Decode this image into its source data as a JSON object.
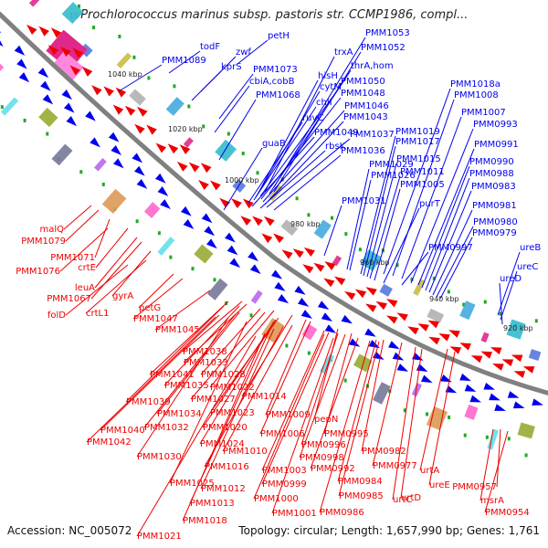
{
  "header": {
    "title": "Prochlorococcus marinus subsp. pastoris str. CCMP1986, compl...",
    "title_prefix": "10"
  },
  "footer": {
    "accession": "Accession: NC_005072",
    "summary": "Topology: circular; Length: 1,657,990 bp; Genes: 1,761"
  },
  "colors": {
    "forward": "#0000ee",
    "reverse": "#ee0000",
    "backbone": "#808080",
    "background": "#ffffff"
  },
  "kbp_ticks": [
    "1040 kbp",
    "1020 kbp",
    "1000 kbp",
    "980 kbp",
    "960 kbp",
    "940 kbp",
    "920 kbp"
  ],
  "forward_labels": [
    "todF",
    "PMM1089",
    "petH",
    "zwf",
    "kprS",
    "PMM1073",
    "cbiA,cobB",
    "PMM1068",
    "PMM1053",
    "PMM1052",
    "trxA",
    "thrA,hom",
    "hisH",
    "PMM1050",
    "cytM",
    "PMM1048",
    "chlI",
    "PMM1046",
    "ruvC",
    "PMM1043",
    "PMM1049",
    "PMM1037",
    "guaB",
    "rbsK",
    "PMM1036",
    "PMM1018a",
    "PMM1008",
    "PMM1007",
    "PMM0993",
    "PMM1019",
    "PMM1017",
    "PMM0991",
    "PMM1029",
    "PMM1015",
    "PMM0990",
    "PMM1026",
    "PMM1011",
    "PMM0988",
    "PMM1005",
    "PMM0983",
    "PMM1031",
    "purT",
    "PMM0981",
    "PMM0980",
    "PMM0979",
    "PMM0997",
    "ureB",
    "ureC",
    "ureD"
  ],
  "reverse_labels": [
    "malQ",
    "PMM1079",
    "PMM1071",
    "PMM1076",
    "crtE",
    "leuA",
    "PMM1067",
    "gyrA",
    "folD",
    "crtL1",
    "petG",
    "PMM1047",
    "PMM1045",
    "PMM1038",
    "PMM1033",
    "PMM1041",
    "PMM1028",
    "PMM1035",
    "PMM1022",
    "PMM1039",
    "PMM1027",
    "PMM1014",
    "PMM1034",
    "PMM1023",
    "PMM1009",
    "PMM1032",
    "PMM1020",
    "PMM1040",
    "PMM1006",
    "pepN",
    "PMM1042",
    "PMM1024",
    "PMM0995",
    "PMM0996",
    "PMM1030",
    "PMM1010",
    "PMM0998",
    "PMM0982",
    "PMM1016",
    "PMM1003",
    "PMM0992",
    "PMM0977",
    "PMM1025",
    "PMM0999",
    "PMM0984",
    "urtA",
    "PMM1012",
    "PMM1000",
    "PMM0985",
    "urtC",
    "ureE",
    "PMM1013",
    "urtD",
    "PMM1001",
    "PMM0986",
    "PMM0957",
    "msrA",
    "PMM1018",
    "PMM0954",
    "PMM1021"
  ]
}
